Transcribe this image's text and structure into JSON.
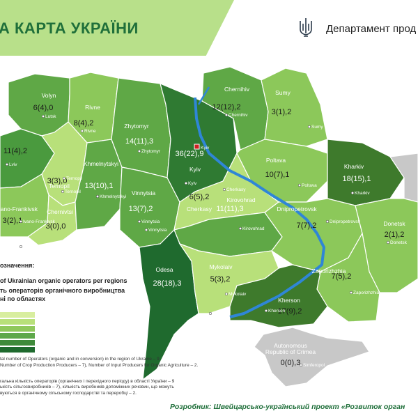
{
  "header": {
    "title": "А КАРТА УКРАЇНИ",
    "department": "Департамент прод"
  },
  "colors": {
    "banner": "#b8e08a",
    "title": "#1f6f3a",
    "river": "#2f86d6",
    "crimea": "#c8c8c8"
  },
  "regions": [
    {
      "name": "Volyn",
      "value": "6(4),0"
    },
    {
      "name": "Rivne",
      "value": "8(4),2"
    },
    {
      "name": "Zhytomyr",
      "value": "14(11),3"
    },
    {
      "name": "Chernihiv",
      "value": "12(12),2"
    },
    {
      "name": "Sumy",
      "value": "3(1),2"
    },
    {
      "name": "Kyiv",
      "value": "36(22),9"
    },
    {
      "name": "",
      "value": "11(4),2"
    },
    {
      "name": "Ternopil",
      "value": "3(3),0"
    },
    {
      "name": "Khmelnytskyi",
      "value": "13(10),1"
    },
    {
      "name": "Vinnytsia",
      "value": "13(7),2"
    },
    {
      "name": "Poltava",
      "value": "10(7),1"
    },
    {
      "name": "Kharkiv",
      "value": "18(15),1"
    },
    {
      "name": "Cherkasy",
      "value": "6(5),2"
    },
    {
      "name": "Ivano-Frankivsk",
      "value": "3(2),1"
    },
    {
      "name": "Chernivtsi",
      "value": "3(0),0"
    },
    {
      "name": "Kirovohrad",
      "value": "11(11),3"
    },
    {
      "name": "Dnipropetrovsk",
      "value": "7(7),2"
    },
    {
      "name": "Donetsk",
      "value": "2(1),2"
    },
    {
      "name": "Odesa",
      "value": "28(18),3"
    },
    {
      "name": "Mykolaiv",
      "value": "5(3),2"
    },
    {
      "name": "Zaporizhzhia",
      "value": "7(5),2"
    },
    {
      "name": "Kherson",
      "value": "17(9),2"
    },
    {
      "name": "Autonomous Republic of Crimea",
      "value": "0(0),3"
    }
  ],
  "cities": [
    "Lutsk",
    "Rivne",
    "Zhytomyr",
    "Chernihiv",
    "Sumy",
    "Kyiv",
    "Lviv",
    "Ternopil",
    "Khmelnytskyi",
    "Vinnytsia",
    "Poltava",
    "Kharkiv",
    "Cherkasy",
    "Ivano-Frankivsk",
    "Chernivtsi",
    "Kirovohrad",
    "Dnipropetrovsk",
    "Donetsk",
    "Odesa",
    "Mykolaiv",
    "Zaporizhzhia",
    "Kherson",
    "Simferopol",
    "Ternopil",
    "Kyiv",
    "Vinnytsia"
  ],
  "legend": {
    "header": "означення:",
    "line1": "of Ukrainian organic operators per regions",
    "line2": "ть операторів органічного виробництва",
    "line3": "ні по областях",
    "swatches": [
      "#d8ee9f",
      "#b8e07a",
      "#8fc85c",
      "#5ea84a",
      "#3e8a3a",
      "#1f6a2e"
    ]
  },
  "footnotes": [
    "tal number of Operators (organic and in conversion) in the region of Ukraine – 9",
    "Number of Crop Production Producers – 7), Number of Input Producers for Organic Agriculture – 2.",
    "гальна кількість операторів (органічних і перехідного періоду) в області України – 9",
    "ькість сільгосвиробників – 7), кількість виробників допоміжних речовин, що можуть",
    "вуються в органічному сільському господарстві та переробці – 2."
  ],
  "developer": "Розробник: Швейцарсько-український проект «Розвиток орган"
}
